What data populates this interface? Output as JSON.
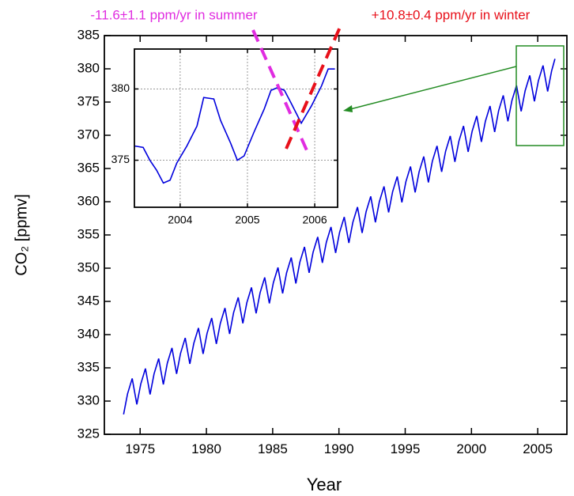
{
  "chart_data": [
    {
      "type": "line",
      "xlabel": "Year",
      "ylabel": "CO₂ [ppmv]",
      "annotations": [
        {
          "text": "-11.6±1.1 ppm/yr in summer",
          "color": "#e02ce0"
        },
        {
          "text": "+10.8±0.4 ppm/yr in winter",
          "color": "#e8101a"
        }
      ],
      "color": "#0000dd",
      "x": [
        1973.75,
        1974.05,
        1974.4,
        1974.75,
        1975.05,
        1975.4,
        1975.75,
        1976.05,
        1976.4,
        1976.75,
        1977.05,
        1977.4,
        1977.75,
        1978.05,
        1978.4,
        1978.75,
        1979.05,
        1979.4,
        1979.75,
        1980.05,
        1980.4,
        1980.75,
        1981.05,
        1981.4,
        1981.75,
        1982.05,
        1982.4,
        1982.75,
        1983.05,
        1983.4,
        1983.75,
        1984.05,
        1984.4,
        1984.75,
        1985.05,
        1985.4,
        1985.75,
        1986.05,
        1986.4,
        1986.75,
        1987.05,
        1987.4,
        1987.75,
        1988.05,
        1988.4,
        1988.75,
        1989.05,
        1989.4,
        1989.75,
        1990.05,
        1990.4,
        1990.75,
        1991.05,
        1991.4,
        1991.75,
        1992.05,
        1992.4,
        1992.75,
        1993.05,
        1993.4,
        1993.75,
        1994.05,
        1994.4,
        1994.75,
        1995.05,
        1995.4,
        1995.75,
        1996.05,
        1996.4,
        1996.75,
        1997.05,
        1997.4,
        1997.75,
        1998.05,
        1998.4,
        1998.75,
        1999.05,
        1999.4,
        1999.75,
        2000.05,
        2000.4,
        2000.75,
        2001.05,
        2001.4,
        2001.75,
        2002.05,
        2002.4,
        2002.75,
        2003.05,
        2003.4,
        2003.75,
        2004.05,
        2004.4,
        2004.75,
        2005.05,
        2005.4,
        2005.75,
        2006.05,
        2006.3
      ],
      "values": [
        328.0,
        331.1,
        333.4,
        329.5,
        332.6,
        334.9,
        331.0,
        334.1,
        336.4,
        332.5,
        335.7,
        338.0,
        334.1,
        337.2,
        339.5,
        335.6,
        338.7,
        341.0,
        337.1,
        340.2,
        342.5,
        338.6,
        341.7,
        344.0,
        340.1,
        343.3,
        345.6,
        341.7,
        344.8,
        347.1,
        343.2,
        346.3,
        348.6,
        344.7,
        347.8,
        350.1,
        346.2,
        349.3,
        351.6,
        347.7,
        350.9,
        353.2,
        349.3,
        352.4,
        354.7,
        350.8,
        353.9,
        356.2,
        352.3,
        355.4,
        357.7,
        353.8,
        356.9,
        359.2,
        355.3,
        358.5,
        360.8,
        356.9,
        360.0,
        362.3,
        358.4,
        361.5,
        363.8,
        359.9,
        363.0,
        365.3,
        361.4,
        364.5,
        366.8,
        362.9,
        366.1,
        368.4,
        364.5,
        367.6,
        369.9,
        366.0,
        369.1,
        371.4,
        367.5,
        370.6,
        372.9,
        369.0,
        372.1,
        374.4,
        370.5,
        373.7,
        376.0,
        372.1,
        375.2,
        377.5,
        373.6,
        376.7,
        379.0,
        375.1,
        378.2,
        380.5,
        376.6,
        379.7,
        381.5
      ],
      "xlim": [
        1972.3,
        2007.2
      ],
      "ylim": [
        325,
        385
      ],
      "xticks": [
        1975,
        1980,
        1985,
        1990,
        1995,
        2000,
        2005
      ],
      "yticks": [
        325,
        330,
        335,
        340,
        345,
        350,
        355,
        360,
        365,
        370,
        375,
        380,
        385
      ],
      "grid": false
    },
    {
      "type": "line",
      "color": "#0000dd",
      "x": [
        2003.32,
        2003.45,
        2003.55,
        2003.65,
        2003.75,
        2003.85,
        2003.95,
        2004.1,
        2004.25,
        2004.35,
        2004.5,
        2004.6,
        2004.75,
        2004.85,
        2004.95,
        2005.1,
        2005.25,
        2005.35,
        2005.45,
        2005.55,
        2005.65,
        2005.8,
        2005.95,
        2006.1,
        2006.2,
        2006.3
      ],
      "values": [
        376.0,
        375.9,
        375.0,
        374.3,
        373.4,
        373.6,
        374.8,
        376.0,
        377.4,
        379.4,
        379.3,
        377.8,
        376.2,
        375.0,
        375.3,
        377.0,
        378.6,
        379.9,
        380.1,
        379.9,
        379.0,
        377.6,
        378.8,
        380.2,
        381.4,
        381.4
      ],
      "xlim": [
        2003.32,
        2006.34
      ],
      "ylim": [
        371.7,
        382.8
      ],
      "xticks": [
        2004,
        2005,
        2006
      ],
      "yticks": [
        375,
        380
      ],
      "grid": true
    }
  ]
}
